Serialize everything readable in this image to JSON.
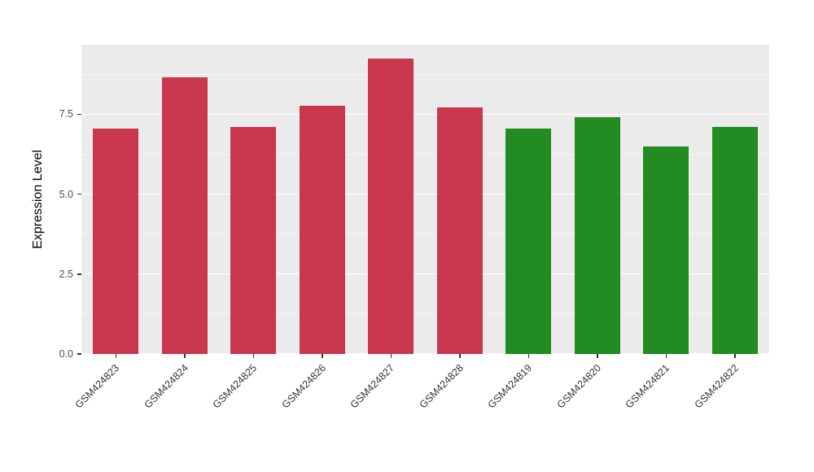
{
  "chart_data": {
    "type": "bar",
    "title": "",
    "xlabel": "",
    "ylabel": "Expression Level",
    "categories": [
      "GSM424823",
      "GSM424824",
      "GSM424825",
      "GSM424826",
      "GSM424827",
      "GSM424828",
      "GSM424819",
      "GSM424820",
      "GSM424821",
      "GSM424822"
    ],
    "values": [
      7.05,
      8.65,
      7.1,
      7.75,
      9.25,
      7.7,
      7.05,
      7.4,
      6.5,
      7.1
    ],
    "bar_colors": [
      "#C8374D",
      "#C8374D",
      "#C8374D",
      "#C8374D",
      "#C8374D",
      "#C8374D",
      "#228B22",
      "#228B22",
      "#228B22",
      "#228B22"
    ],
    "group_colors": {
      "group1": "#C8374D",
      "group2": "#228B22"
    },
    "ylim": [
      0,
      9.67
    ],
    "yticks": [
      {
        "label": "0.0",
        "value": 0
      },
      {
        "label": "2.5",
        "value": 2.5
      },
      {
        "label": "5.0",
        "value": 5.0
      },
      {
        "label": "7.5",
        "value": 7.5
      }
    ],
    "yticks_minor": [
      1.25,
      3.75,
      6.25,
      8.75
    ],
    "grid": "on",
    "legend": "none",
    "panel_bg": "#EBEBEB",
    "grid_color": "#FFFFFF",
    "page_bg": "#FFFFFF"
  }
}
